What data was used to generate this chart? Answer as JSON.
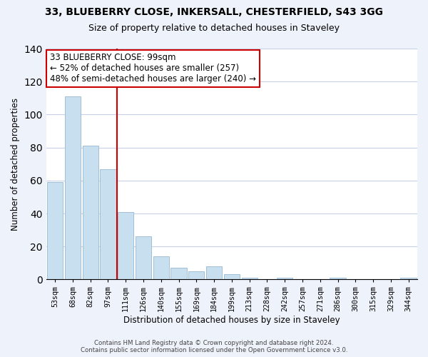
{
  "title": "33, BLUEBERRY CLOSE, INKERSALL, CHESTERFIELD, S43 3GG",
  "subtitle": "Size of property relative to detached houses in Staveley",
  "xlabel": "Distribution of detached houses by size in Staveley",
  "ylabel": "Number of detached properties",
  "bar_labels": [
    "53sqm",
    "68sqm",
    "82sqm",
    "97sqm",
    "111sqm",
    "126sqm",
    "140sqm",
    "155sqm",
    "169sqm",
    "184sqm",
    "199sqm",
    "213sqm",
    "228sqm",
    "242sqm",
    "257sqm",
    "271sqm",
    "286sqm",
    "300sqm",
    "315sqm",
    "329sqm",
    "344sqm"
  ],
  "bar_heights": [
    59,
    111,
    81,
    67,
    41,
    26,
    14,
    7,
    5,
    8,
    3,
    1,
    0,
    1,
    0,
    0,
    1,
    0,
    0,
    0,
    1
  ],
  "bar_color": "#c8dff0",
  "bar_edge_color": "#a0c0d8",
  "vline_color": "#cc0000",
  "vline_position": 3.5,
  "annotation_text": "33 BLUEBERRY CLOSE: 99sqm\n← 52% of detached houses are smaller (257)\n48% of semi-detached houses are larger (240) →",
  "annotation_box_facecolor": "#ffffff",
  "annotation_box_edgecolor": "#cc0000",
  "ylim": [
    0,
    140
  ],
  "yticks": [
    0,
    20,
    40,
    60,
    80,
    100,
    120,
    140
  ],
  "footer_line1": "Contains HM Land Registry data © Crown copyright and database right 2024.",
  "footer_line2": "Contains public sector information licensed under the Open Government Licence v3.0.",
  "background_color": "#eef2fa",
  "plot_background": "#ffffff",
  "grid_color": "#c8d0e8"
}
